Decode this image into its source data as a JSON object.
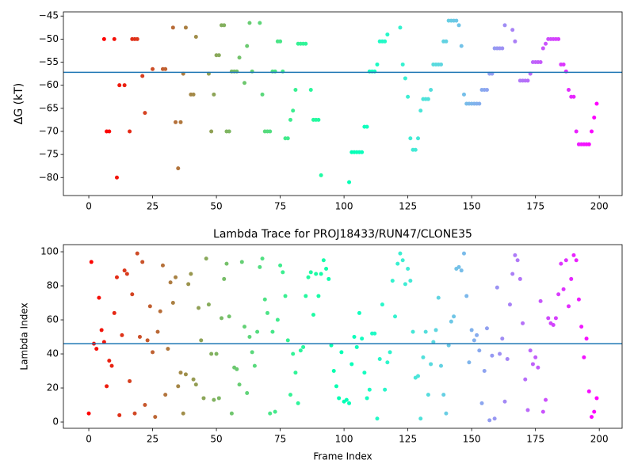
{
  "chart_data": [
    {
      "type": "scatter",
      "ylabel": "ΔG (kT)",
      "x": [
        6,
        7,
        8,
        10,
        11,
        12,
        14,
        16,
        17,
        18,
        19,
        21,
        22,
        25,
        29,
        30,
        33,
        34,
        35,
        36,
        37,
        38,
        40,
        41,
        42,
        47,
        48,
        49,
        50,
        51,
        52,
        53,
        54,
        55,
        56,
        57,
        58,
        59,
        61,
        62,
        63,
        64,
        67,
        68,
        69,
        70,
        71,
        72,
        73,
        74,
        75,
        76,
        77,
        78,
        79,
        80,
        81,
        82,
        83,
        84,
        85,
        87,
        88,
        89,
        90,
        91,
        102,
        103,
        104,
        105,
        106,
        107,
        108,
        109,
        110,
        111,
        112,
        113,
        114,
        115,
        116,
        117,
        122,
        123,
        124,
        125,
        126,
        127,
        128,
        129,
        130,
        131,
        132,
        133,
        134,
        135,
        136,
        137,
        138,
        139,
        140,
        141,
        142,
        143,
        144,
        145,
        146,
        147,
        148,
        149,
        150,
        151,
        152,
        153,
        154,
        155,
        156,
        157,
        158,
        159,
        160,
        161,
        162,
        163,
        166,
        167,
        169,
        170,
        171,
        172,
        173,
        174,
        175,
        176,
        177,
        178,
        179,
        180,
        181,
        182,
        183,
        184,
        185,
        186,
        187,
        188,
        189,
        190,
        191,
        192,
        193,
        194,
        195,
        196,
        197,
        198,
        199
      ],
      "values": [
        -50,
        -70,
        -70,
        -50,
        -80,
        -60,
        -60,
        -70,
        -50,
        -50,
        -50,
        -58,
        -66,
        -56.5,
        -56.5,
        -56.5,
        -47.5,
        -68,
        -78,
        -68,
        -57.5,
        -47.5,
        -62,
        -62,
        -49.5,
        -57.5,
        -70,
        -62,
        -53.5,
        -53.5,
        -47,
        -47,
        -70,
        -70,
        -57,
        -57,
        -57,
        -54,
        -59.5,
        -51.5,
        -46.5,
        -57,
        -46.5,
        -62,
        -70,
        -70,
        -70,
        -57,
        -57,
        -50.5,
        -50.5,
        -57,
        -71.5,
        -71.5,
        -67.5,
        -65.5,
        -61,
        -51,
        -51,
        -51,
        -51,
        -61,
        -67.5,
        -67.5,
        -67.5,
        -79.5,
        -81,
        -74.5,
        -74.5,
        -74.5,
        -74.5,
        -74.5,
        -69,
        -69,
        -57,
        -57,
        -57,
        -55.5,
        -50.5,
        -50.5,
        -50.5,
        -49,
        -47.5,
        -55.5,
        -58.5,
        -62.5,
        -71.5,
        -74,
        -74,
        -71.5,
        -65.5,
        -63,
        -63,
        -63,
        -61,
        -55.5,
        -55.5,
        -55.5,
        -55.5,
        -50.5,
        -50.5,
        -46,
        -46,
        -46,
        -46,
        -47,
        -51.5,
        -62,
        -64,
        -64,
        -64,
        -64,
        -64,
        -64,
        -61,
        -61,
        -61,
        -57.5,
        -57.5,
        -52,
        -52,
        -52,
        -52,
        -47,
        -48,
        -50.5,
        -59,
        -59,
        -59,
        -59,
        -57.5,
        -55,
        -55,
        -55,
        -55,
        -52,
        -51,
        -50,
        -50,
        -50,
        -50,
        -50,
        -55.5,
        -55.5,
        -57,
        -61,
        -62.5,
        -62.5,
        -70,
        -72.8,
        -72.8,
        -72.8,
        -72.8,
        -72.8,
        -70,
        -67,
        -64
      ],
      "xlim": [
        -9.95,
        208.95
      ],
      "ylim": [
        -83.9,
        -44.1
      ],
      "xticks": [
        0,
        25,
        50,
        75,
        100,
        125,
        150,
        175,
        200
      ],
      "yticks": [
        {
          "value": -80,
          "label": "−80"
        },
        {
          "value": -75,
          "label": "−75"
        },
        {
          "value": -70,
          "label": "−70"
        },
        {
          "value": -65,
          "label": "−65"
        },
        {
          "value": -60,
          "label": "−60"
        },
        {
          "value": -55,
          "label": "−55"
        },
        {
          "value": -50,
          "label": "−50"
        },
        {
          "value": -45,
          "label": "−45"
        }
      ],
      "colormap": "rainbow_r",
      "hline": -57.2,
      "hline_color": "#1f77b4"
    },
    {
      "type": "scatter",
      "title": "Lambda Trace for PROJ18433/RUN47/CLONE35",
      "xlabel": "Frame Index",
      "ylabel": "Lambda Index",
      "x": [
        0,
        1,
        2,
        3,
        4,
        5,
        6,
        7,
        8,
        9,
        10,
        11,
        12,
        13,
        14,
        15,
        16,
        17,
        18,
        19,
        20,
        21,
        22,
        23,
        24,
        25,
        26,
        27,
        28,
        29,
        30,
        31,
        32,
        33,
        34,
        35,
        36,
        37,
        38,
        39,
        40,
        41,
        42,
        43,
        44,
        45,
        46,
        47,
        48,
        49,
        50,
        51,
        52,
        53,
        54,
        55,
        56,
        57,
        58,
        59,
        60,
        61,
        62,
        63,
        64,
        65,
        66,
        67,
        68,
        69,
        70,
        71,
        72,
        73,
        74,
        75,
        76,
        77,
        78,
        79,
        80,
        81,
        82,
        83,
        84,
        85,
        86,
        87,
        88,
        89,
        90,
        91,
        92,
        93,
        94,
        95,
        96,
        97,
        98,
        99,
        100,
        101,
        102,
        103,
        104,
        105,
        106,
        107,
        108,
        109,
        110,
        111,
        112,
        113,
        114,
        115,
        116,
        117,
        118,
        119,
        120,
        121,
        122,
        123,
        124,
        125,
        126,
        127,
        128,
        129,
        130,
        131,
        132,
        133,
        134,
        135,
        136,
        137,
        138,
        139,
        140,
        141,
        142,
        143,
        144,
        145,
        146,
        147,
        148,
        149,
        150,
        151,
        152,
        153,
        154,
        155,
        156,
        157,
        158,
        159,
        160,
        161,
        162,
        163,
        164,
        165,
        166,
        167,
        168,
        169,
        170,
        171,
        172,
        173,
        174,
        175,
        176,
        177,
        178,
        179,
        180,
        181,
        182,
        183,
        184,
        185,
        186,
        187,
        188,
        189,
        190,
        191,
        192,
        193,
        194,
        195,
        196,
        197,
        198,
        199
      ],
      "values": [
        5,
        94,
        46,
        43,
        73,
        54,
        47,
        21,
        36,
        33,
        64,
        85,
        4,
        51,
        89,
        87,
        24,
        75,
        5,
        99,
        50,
        94,
        10,
        48,
        68,
        41,
        3,
        53,
        65,
        92,
        16,
        43,
        82,
        70,
        85,
        21,
        29,
        5,
        28,
        81,
        87,
        25,
        22,
        67,
        48,
        14,
        96,
        69,
        40,
        13,
        40,
        14,
        61,
        84,
        93,
        62,
        5,
        32,
        31,
        22,
        94,
        56,
        17,
        50,
        41,
        33,
        53,
        91,
        96,
        72,
        64,
        5,
        53,
        6,
        60,
        92,
        88,
        74,
        48,
        16,
        40,
        29,
        11,
        42,
        44,
        74,
        85,
        88,
        63,
        87,
        74,
        87,
        95,
        90,
        84,
        45,
        30,
        21,
        14,
        41,
        12,
        13,
        11,
        34,
        50,
        44,
        64,
        49,
        29,
        14,
        19,
        52,
        52,
        2,
        37,
        69,
        19,
        35,
        41,
        83,
        62,
        93,
        99,
        95,
        81,
        90,
        83,
        53,
        26,
        27,
        2,
        38,
        53,
        16,
        34,
        47,
        54,
        73,
        33,
        16,
        5,
        45,
        59,
        62,
        90,
        91,
        89,
        99,
        74,
        35,
        54,
        48,
        51,
        42,
        11,
        30,
        55,
        1,
        39,
        2,
        79,
        40,
        49,
        12,
        37,
        69,
        87,
        98,
        95,
        84,
        58,
        25,
        7,
        42,
        34,
        38,
        32,
        71,
        6,
        13,
        61,
        58,
        57,
        61,
        75,
        93,
        78,
        95,
        68,
        84,
        98,
        95,
        72,
        56,
        38,
        49,
        18,
        3,
        6,
        14
      ],
      "xlim": [
        -9.95,
        208.95
      ],
      "ylim": [
        -3.7,
        104.2
      ],
      "xticks": [
        0,
        25,
        50,
        75,
        100,
        125,
        150,
        175,
        200
      ],
      "yticks": [
        0,
        20,
        40,
        60,
        80,
        100
      ],
      "colormap": "rainbow_r",
      "hline": 46,
      "hline_color": "#1f77b4"
    }
  ]
}
